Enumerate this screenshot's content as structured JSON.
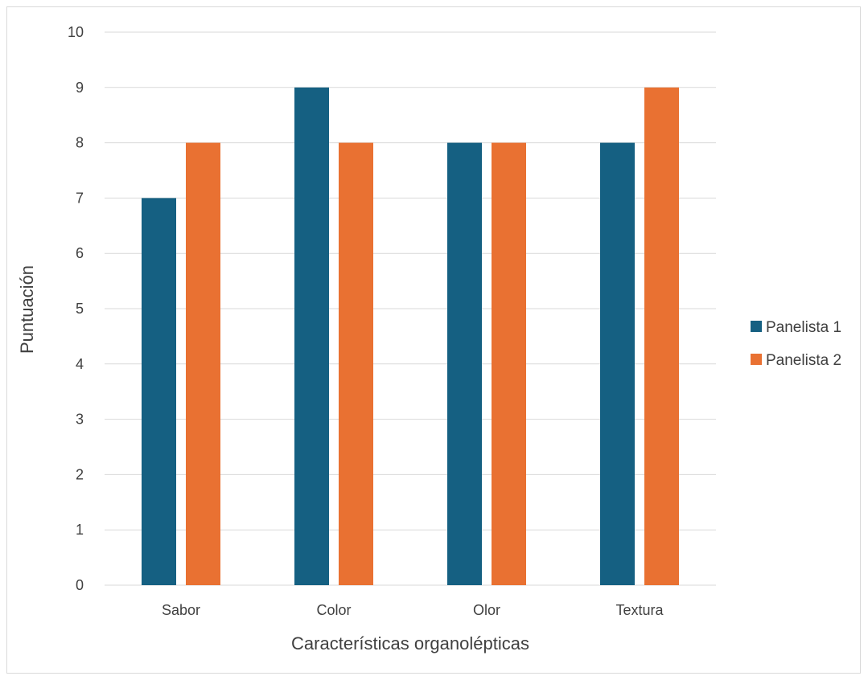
{
  "chart_data": {
    "type": "bar",
    "categories": [
      "Sabor",
      "Color",
      "Olor",
      "Textura"
    ],
    "series": [
      {
        "name": "Panelista 1",
        "values": [
          7,
          9,
          8,
          8
        ],
        "color": "#156082"
      },
      {
        "name": "Panelista 2",
        "values": [
          8,
          8,
          8,
          9
        ],
        "color": "#E97132"
      }
    ],
    "title": "",
    "xlabel": "Características organolépticas",
    "ylabel": "Puntuación",
    "ylim": [
      0,
      10
    ],
    "yticks": [
      "0",
      "1",
      "2",
      "3",
      "4",
      "5",
      "6",
      "7",
      "8",
      "9",
      "10"
    ],
    "grid": true,
    "legend_position": "right"
  }
}
